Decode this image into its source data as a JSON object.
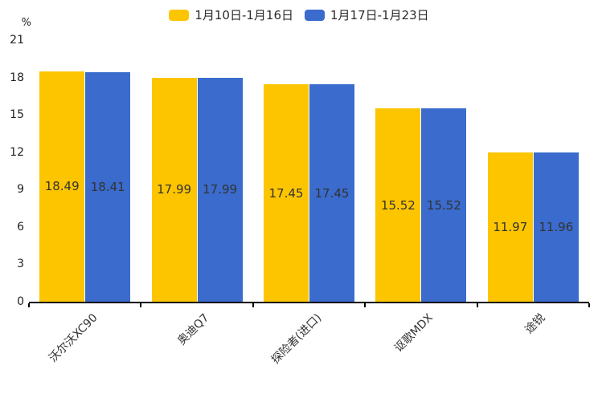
{
  "chart_data": {
    "type": "bar",
    "categories": [
      "沃尔沃XC90",
      "奥迪Q7",
      "探险者(进口)",
      "讴歌MDX",
      "途锐"
    ],
    "series": [
      {
        "name": "1月10日-1月16日",
        "color": "#FDC500",
        "values": [
          18.49,
          17.99,
          17.45,
          15.52,
          11.97
        ]
      },
      {
        "name": "1月17日-1月23日",
        "color": "#3A6BCD",
        "values": [
          18.41,
          17.99,
          17.45,
          15.52,
          11.96
        ]
      }
    ],
    "title": "",
    "xlabel": "",
    "ylabel": "%",
    "yticks": [
      0,
      3,
      6,
      9,
      12,
      15,
      18,
      21
    ],
    "ylim": [
      0,
      21
    ],
    "grid": false,
    "legend_position": "top-center",
    "value_labels": "inside-center",
    "axis_color": "#000000",
    "label_color": "#333333"
  },
  "legend": {
    "items": [
      {
        "label": "1月10日-1月16日",
        "color": "#FDC500"
      },
      {
        "label": "1月17日-1月23日",
        "color": "#3A6BCD"
      }
    ]
  },
  "unit_label": "%"
}
